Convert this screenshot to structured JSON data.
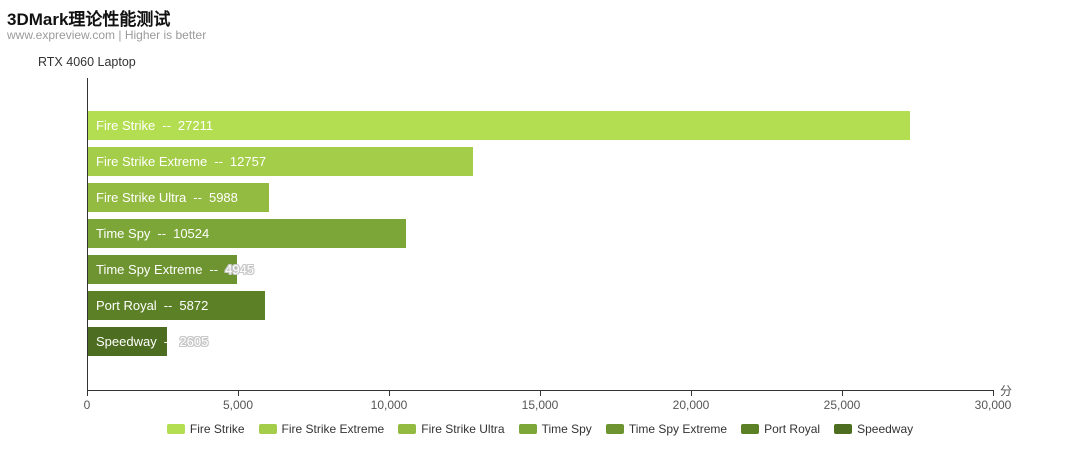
{
  "header": {
    "title": "3DMark理论性能测试",
    "subtitle": "www.expreview.com | Higher is better"
  },
  "chart_data": {
    "type": "bar",
    "orientation": "horizontal",
    "title": "3DMark理论性能测试",
    "subtitle": "www.expreview.com | Higher is better",
    "series_label": "RTX 4060 Laptop",
    "categories": [
      "Fire Strike",
      "Fire Strike Extreme",
      "Fire Strike Ultra",
      "Time Spy",
      "Time Spy Extreme",
      "Port Royal",
      "Speedway"
    ],
    "values": [
      27211,
      12757,
      5988,
      10524,
      4945,
      5872,
      2605
    ],
    "colors": [
      "#b4de52",
      "#a4cd4a",
      "#93ba41",
      "#7ca637",
      "#6d9430",
      "#5c8025",
      "#4d6e20"
    ],
    "value_outside_bar": [
      false,
      false,
      false,
      false,
      true,
      false,
      true
    ],
    "label_separator": "--",
    "xlabel": "分",
    "xlim": [
      0,
      30000
    ],
    "x_tick_values": [
      0,
      5000,
      10000,
      15000,
      20000,
      25000,
      30000
    ],
    "x_tick_labels": [
      "0",
      "5,000",
      "10,000",
      "15,000",
      "20,000",
      "25,000",
      "30,000"
    ],
    "grid": false,
    "legend_position": "bottom",
    "legend": [
      "Fire Strike",
      "Fire Strike Extreme",
      "Fire Strike Ultra",
      "Time Spy",
      "Time Spy Extreme",
      "Port Royal",
      "Speedway"
    ]
  }
}
